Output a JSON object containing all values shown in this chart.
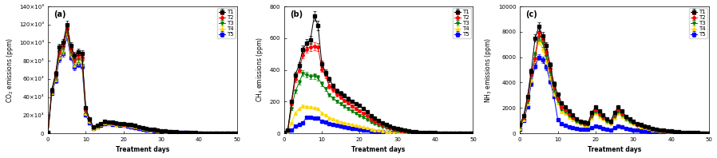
{
  "panel_labels": [
    "(a)",
    "(b)",
    "(c)"
  ],
  "xlabel": "Treatment days",
  "ylabels": [
    "CO$_2$ emissions (ppm)",
    "CH$_4$ emissions (ppm)",
    "NH$_3$ emissions (ppm)"
  ],
  "legend_labels": [
    "T1",
    "T2",
    "T3",
    "T4",
    "T5"
  ],
  "series_colors": [
    "black",
    "red",
    "green",
    "gold",
    "blue"
  ],
  "series_markers": [
    "s",
    "o",
    "v",
    "^",
    "s"
  ],
  "days": [
    0,
    1,
    2,
    3,
    4,
    5,
    6,
    7,
    8,
    9,
    10,
    11,
    12,
    13,
    14,
    15,
    16,
    17,
    18,
    19,
    20,
    21,
    22,
    23,
    24,
    25,
    26,
    27,
    28,
    29,
    30,
    31,
    32,
    33,
    34,
    35,
    36,
    37,
    38,
    39,
    40,
    41,
    42,
    43,
    44,
    45,
    46,
    47,
    48,
    49,
    50
  ],
  "co2_T1": [
    1000,
    48000,
    66000,
    95000,
    100000,
    120000,
    97000,
    86000,
    90000,
    88000,
    28000,
    16000,
    7000,
    9000,
    11000,
    13000,
    12500,
    12000,
    11500,
    11000,
    10500,
    10000,
    9500,
    8500,
    7500,
    6500,
    5500,
    4800,
    4200,
    3600,
    3100,
    2600,
    2200,
    1800,
    1500,
    1200,
    1000,
    850,
    700,
    550,
    450,
    370,
    300,
    240,
    190,
    150,
    120,
    95,
    70,
    50,
    30
  ],
  "co2_T2": [
    1000,
    47000,
    64000,
    91000,
    97000,
    116000,
    93000,
    82000,
    86000,
    84000,
    26000,
    15000,
    6500,
    8500,
    10500,
    12500,
    12000,
    11500,
    11000,
    10500,
    10000,
    9500,
    9000,
    8000,
    7000,
    6000,
    5000,
    4400,
    3800,
    3200,
    2700,
    2300,
    1900,
    1600,
    1300,
    1050,
    880,
    730,
    590,
    470,
    385,
    315,
    255,
    205,
    162,
    128,
    103,
    80,
    60,
    42,
    25
  ],
  "co2_T3": [
    1000,
    46000,
    62000,
    88000,
    94000,
    113000,
    90000,
    79000,
    82000,
    80000,
    24000,
    14000,
    6000,
    8000,
    10000,
    12000,
    11500,
    11000,
    10500,
    10000,
    9500,
    9000,
    8500,
    7500,
    6500,
    5500,
    4700,
    4100,
    3500,
    2900,
    2500,
    2100,
    1750,
    1450,
    1180,
    950,
    795,
    655,
    530,
    420,
    340,
    278,
    226,
    180,
    142,
    113,
    90,
    70,
    53,
    37,
    22
  ],
  "co2_T4": [
    1000,
    45000,
    60000,
    85000,
    91000,
    110000,
    87000,
    76000,
    79000,
    77000,
    22000,
    13000,
    5500,
    7500,
    9500,
    11500,
    11000,
    10500,
    10000,
    9500,
    9000,
    8500,
    8000,
    7000,
    6000,
    5000,
    4300,
    3700,
    3200,
    2700,
    2300,
    1900,
    1580,
    1300,
    1060,
    855,
    715,
    588,
    476,
    378,
    308,
    252,
    204,
    163,
    128,
    102,
    81,
    63,
    47,
    33,
    20
  ],
  "co2_T5": [
    800,
    44000,
    58000,
    82000,
    88000,
    107000,
    84000,
    73000,
    76000,
    74000,
    20000,
    11500,
    5000,
    7000,
    9000,
    11000,
    10500,
    10000,
    9500,
    9000,
    8500,
    8000,
    7500,
    6500,
    5500,
    4500,
    3900,
    3300,
    2800,
    2300,
    1950,
    1650,
    1360,
    1120,
    910,
    735,
    615,
    505,
    408,
    324,
    264,
    215,
    174,
    139,
    109,
    87,
    69,
    54,
    40,
    28,
    17
  ],
  "ch4_T1": [
    5,
    20,
    200,
    370,
    430,
    530,
    570,
    590,
    740,
    680,
    440,
    385,
    340,
    300,
    268,
    252,
    238,
    218,
    202,
    188,
    174,
    155,
    136,
    113,
    94,
    79,
    67,
    56,
    46,
    37,
    30,
    23,
    18,
    14,
    11,
    9,
    7,
    5.5,
    4.5,
    3.5,
    2.8,
    2.2,
    1.8,
    1.4,
    1.1,
    0.85,
    0.65,
    0.5,
    0.38,
    0.28,
    0.18
  ],
  "ch4_T2": [
    5,
    18,
    185,
    340,
    400,
    495,
    530,
    545,
    550,
    545,
    405,
    365,
    296,
    275,
    246,
    228,
    208,
    190,
    171,
    156,
    142,
    127,
    111,
    92,
    77,
    63,
    54,
    44,
    36,
    28,
    23,
    17,
    13,
    11,
    8,
    6.8,
    5.4,
    4.4,
    3.5,
    2.8,
    2.2,
    1.75,
    1.38,
    1.08,
    0.84,
    0.65,
    0.5,
    0.38,
    0.29,
    0.2,
    0.12
  ],
  "ch4_T3": [
    5,
    15,
    155,
    265,
    320,
    378,
    368,
    358,
    360,
    350,
    310,
    280,
    242,
    222,
    202,
    184,
    170,
    154,
    140,
    126,
    113,
    100,
    87,
    73,
    60,
    50,
    42,
    34,
    28,
    22,
    17,
    13,
    10,
    8,
    6,
    5,
    3.9,
    3.2,
    2.6,
    2.1,
    1.65,
    1.3,
    1.04,
    0.81,
    0.63,
    0.49,
    0.38,
    0.29,
    0.22,
    0.16,
    0.1
  ],
  "ch4_T4": [
    5,
    10,
    65,
    128,
    155,
    172,
    168,
    164,
    159,
    155,
    128,
    115,
    98,
    89,
    80,
    72,
    67,
    60,
    54,
    48,
    43,
    38,
    33,
    27,
    22,
    18,
    15,
    12,
    9,
    7,
    5.5,
    4.3,
    3.3,
    2.6,
    2,
    1.6,
    1.28,
    1.0,
    0.8,
    0.64,
    0.5,
    0.4,
    0.32,
    0.25,
    0.19,
    0.15,
    0.12,
    0.09,
    0.07,
    0.05,
    0.03
  ],
  "ch4_T5": [
    5,
    6,
    18,
    45,
    58,
    68,
    100,
    102,
    98,
    94,
    78,
    70,
    60,
    54,
    48,
    43,
    39,
    35,
    31,
    28,
    24,
    21,
    18,
    15,
    12,
    10,
    8,
    6.3,
    5,
    4,
    3.2,
    2.5,
    2.0,
    1.58,
    1.22,
    0.98,
    0.78,
    0.61,
    0.48,
    0.38,
    0.3,
    0.24,
    0.19,
    0.15,
    0.12,
    0.09,
    0.07,
    0.05,
    0.04,
    0.03,
    0.02
  ],
  "nh3_T1": [
    700,
    1400,
    2900,
    4900,
    7500,
    8400,
    7700,
    6900,
    5400,
    3900,
    3100,
    2400,
    2100,
    1750,
    1450,
    1150,
    960,
    860,
    820,
    1650,
    2050,
    1750,
    1450,
    1150,
    960,
    1650,
    2050,
    1750,
    1350,
    1150,
    960,
    770,
    670,
    570,
    475,
    380,
    332,
    284,
    237,
    190,
    161,
    132,
    113,
    94,
    75,
    60,
    47,
    37,
    28,
    19,
    9
  ],
  "nh3_T2": [
    600,
    1300,
    2700,
    4700,
    5900,
    7900,
    7400,
    6400,
    5100,
    3700,
    2800,
    2100,
    1900,
    1550,
    1300,
    1050,
    875,
    778,
    741,
    1490,
    1890,
    1600,
    1335,
    1055,
    875,
    1490,
    1890,
    1600,
    1255,
    1055,
    875,
    705,
    607,
    517,
    432,
    347,
    302,
    258,
    215,
    172,
    146,
    120,
    102,
    85,
    68,
    54,
    42,
    33,
    25,
    17,
    8
  ],
  "nh3_T3": [
    500,
    1200,
    2500,
    4500,
    6200,
    7600,
    7100,
    6100,
    4800,
    3400,
    2600,
    1900,
    1700,
    1380,
    1180,
    940,
    790,
    695,
    668,
    1330,
    1730,
    1462,
    1222,
    968,
    790,
    1330,
    1730,
    1462,
    1148,
    968,
    790,
    638,
    542,
    461,
    385,
    308,
    268,
    229,
    190,
    152,
    129,
    105,
    90,
    75,
    60,
    48,
    37,
    29,
    22,
    15,
    7
  ],
  "nh3_T4": [
    400,
    1100,
    2300,
    4200,
    5900,
    7300,
    6700,
    5700,
    4400,
    3100,
    2400,
    1700,
    1580,
    1264,
    1098,
    874,
    726,
    638,
    609,
    1184,
    1584,
    1336,
    1114,
    874,
    726,
    1184,
    1584,
    1336,
    1048,
    874,
    726,
    582,
    494,
    420,
    350,
    280,
    243,
    207,
    172,
    138,
    116,
    95,
    81,
    68,
    54,
    43,
    34,
    26,
    20,
    13,
    6
  ],
  "nh3_T5": [
    300,
    1000,
    2100,
    3900,
    5300,
    6000,
    5800,
    5200,
    4100,
    2900,
    1100,
    740,
    650,
    536,
    460,
    384,
    338,
    310,
    292,
    460,
    558,
    482,
    408,
    332,
    276,
    460,
    558,
    482,
    390,
    322,
    276,
    228,
    196,
    167,
    139,
    111,
    97,
    83,
    68,
    55,
    46,
    38,
    33,
    27,
    22,
    17,
    14,
    11,
    8,
    5,
    2
  ],
  "co2_ylim": [
    0,
    140000
  ],
  "ch4_ylim": [
    0,
    800
  ],
  "nh3_ylim": [
    0,
    10000
  ],
  "co2_yticks": [
    0,
    20000,
    40000,
    60000,
    80000,
    100000,
    120000,
    140000
  ],
  "co2_yticklabels": [
    "0",
    "20×10³",
    "40×10³",
    "60×10³",
    "80×10³",
    "100×10³",
    "120×10³",
    "140×10³"
  ],
  "ch4_yticks": [
    0,
    200,
    400,
    600,
    800
  ],
  "nh3_yticks": [
    0,
    2000,
    4000,
    6000,
    8000,
    10000
  ],
  "xticks": [
    0,
    10,
    20,
    30,
    40,
    50
  ],
  "linewidth": 0.7,
  "markersize": 2.5,
  "fontsize_label": 5.5,
  "fontsize_tick": 5,
  "fontsize_legend": 5,
  "fontsize_panel": 7,
  "errorbar_capsize": 1.5,
  "error_linewidth": 0.5
}
